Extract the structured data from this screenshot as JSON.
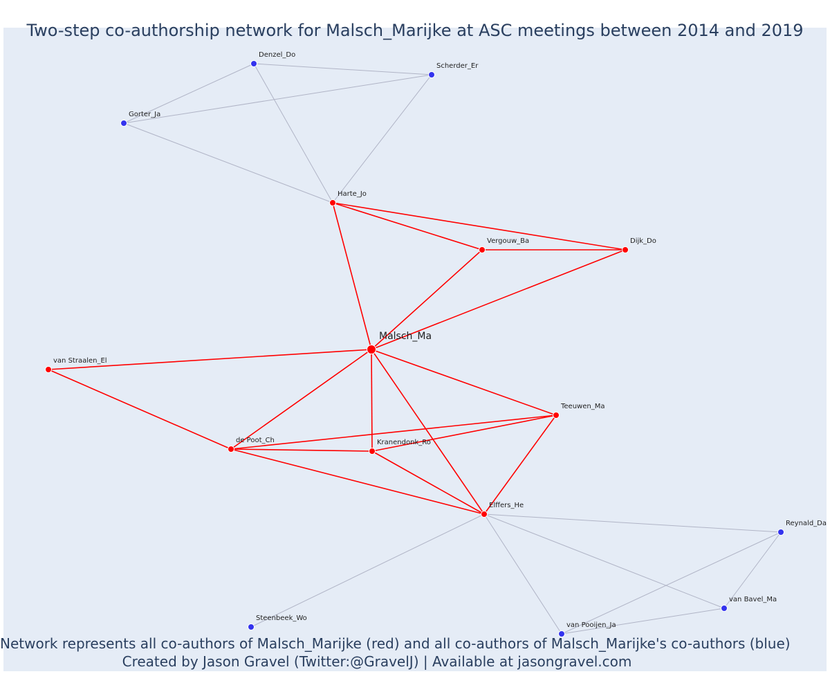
{
  "title": "Two-step co-authorship network for Malsch_Marijke at ASC meetings between 2014 and 2019",
  "caption": {
    "line1": "Network represents all co-authors of Malsch_Marijke (red) and all co-authors of Malsch_Marijke's co-authors (blue)",
    "line2": "Created by Jason Gravel (Twitter:@GravelJ) | Available at jasongravel.com"
  },
  "colors": {
    "background": "#e5ecf6",
    "first_degree": "#ff0000",
    "second_degree": "#3333ee",
    "first_degree_edge": "#ff0000",
    "second_degree_edge": "#b0b4c6",
    "text": "#2a3f5f"
  },
  "nodes": [
    {
      "id": "Malsch_Ma",
      "label": "Malsch_Ma",
      "group": "ego"
    },
    {
      "id": "Harte_Jo",
      "label": "Harte_Jo",
      "group": "coauthor"
    },
    {
      "id": "Vergouw_Ba",
      "label": "Vergouw_Ba",
      "group": "coauthor"
    },
    {
      "id": "Dijk_Do",
      "label": "Dijk_Do",
      "group": "coauthor"
    },
    {
      "id": "van Straalen_El",
      "label": "van Straalen_El",
      "group": "coauthor"
    },
    {
      "id": "Teeuwen_Ma",
      "label": "Teeuwen_Ma",
      "group": "coauthor"
    },
    {
      "id": "de Poot_Ch",
      "label": "de Poot_Ch",
      "group": "coauthor"
    },
    {
      "id": "Kranendonk_Ro",
      "label": "Kranendonk_Ro",
      "group": "coauthor"
    },
    {
      "id": "Elffers_He",
      "label": "Elffers_He",
      "group": "coauthor"
    },
    {
      "id": "Denzel_Do",
      "label": "Denzel_Do",
      "group": "second"
    },
    {
      "id": "Scherder_Er",
      "label": "Scherder_Er",
      "group": "second"
    },
    {
      "id": "Gorter_Ja",
      "label": "Gorter_Ja",
      "group": "second"
    },
    {
      "id": "Reynald_Da",
      "label": "Reynald_Da",
      "group": "second"
    },
    {
      "id": "van Bavel_Ma",
      "label": "van Bavel_Ma",
      "group": "second"
    },
    {
      "id": "van Pooijen_Ja",
      "label": "van Pooijen_Ja",
      "group": "second"
    },
    {
      "id": "Steenbeek_Wo",
      "label": "Steenbeek_Wo",
      "group": "second"
    }
  ],
  "edges": [
    {
      "source": "Malsch_Ma",
      "target": "Harte_Jo",
      "type": "first"
    },
    {
      "source": "Malsch_Ma",
      "target": "Vergouw_Ba",
      "type": "first"
    },
    {
      "source": "Malsch_Ma",
      "target": "Dijk_Do",
      "type": "first"
    },
    {
      "source": "Malsch_Ma",
      "target": "van Straalen_El",
      "type": "first"
    },
    {
      "source": "Malsch_Ma",
      "target": "de Poot_Ch",
      "type": "first"
    },
    {
      "source": "Malsch_Ma",
      "target": "Kranendonk_Ro",
      "type": "first"
    },
    {
      "source": "Malsch_Ma",
      "target": "Elffers_He",
      "type": "first"
    },
    {
      "source": "Malsch_Ma",
      "target": "Teeuwen_Ma",
      "type": "first"
    },
    {
      "source": "Harte_Jo",
      "target": "Vergouw_Ba",
      "type": "first"
    },
    {
      "source": "Harte_Jo",
      "target": "Dijk_Do",
      "type": "first"
    },
    {
      "source": "Vergouw_Ba",
      "target": "Dijk_Do",
      "type": "first"
    },
    {
      "source": "van Straalen_El",
      "target": "de Poot_Ch",
      "type": "first"
    },
    {
      "source": "de Poot_Ch",
      "target": "Kranendonk_Ro",
      "type": "first"
    },
    {
      "source": "de Poot_Ch",
      "target": "Teeuwen_Ma",
      "type": "first"
    },
    {
      "source": "de Poot_Ch",
      "target": "Elffers_He",
      "type": "first"
    },
    {
      "source": "Kranendonk_Ro",
      "target": "Teeuwen_Ma",
      "type": "first"
    },
    {
      "source": "Kranendonk_Ro",
      "target": "Elffers_He",
      "type": "first"
    },
    {
      "source": "Teeuwen_Ma",
      "target": "Elffers_He",
      "type": "first"
    },
    {
      "source": "Harte_Jo",
      "target": "Denzel_Do",
      "type": "second"
    },
    {
      "source": "Harte_Jo",
      "target": "Scherder_Er",
      "type": "second"
    },
    {
      "source": "Harte_Jo",
      "target": "Gorter_Ja",
      "type": "second"
    },
    {
      "source": "Denzel_Do",
      "target": "Scherder_Er",
      "type": "second"
    },
    {
      "source": "Denzel_Do",
      "target": "Gorter_Ja",
      "type": "second"
    },
    {
      "source": "Gorter_Ja",
      "target": "Scherder_Er",
      "type": "second"
    },
    {
      "source": "Elffers_He",
      "target": "Reynald_Da",
      "type": "second"
    },
    {
      "source": "Elffers_He",
      "target": "van Bavel_Ma",
      "type": "second"
    },
    {
      "source": "Elffers_He",
      "target": "van Pooijen_Ja",
      "type": "second"
    },
    {
      "source": "Elffers_He",
      "target": "Steenbeek_Wo",
      "type": "second"
    },
    {
      "source": "Reynald_Da",
      "target": "van Bavel_Ma",
      "type": "second"
    },
    {
      "source": "Reynald_Da",
      "target": "van Pooijen_Ja",
      "type": "second"
    },
    {
      "source": "van Bavel_Ma",
      "target": "van Pooijen_Ja",
      "type": "second"
    }
  ]
}
